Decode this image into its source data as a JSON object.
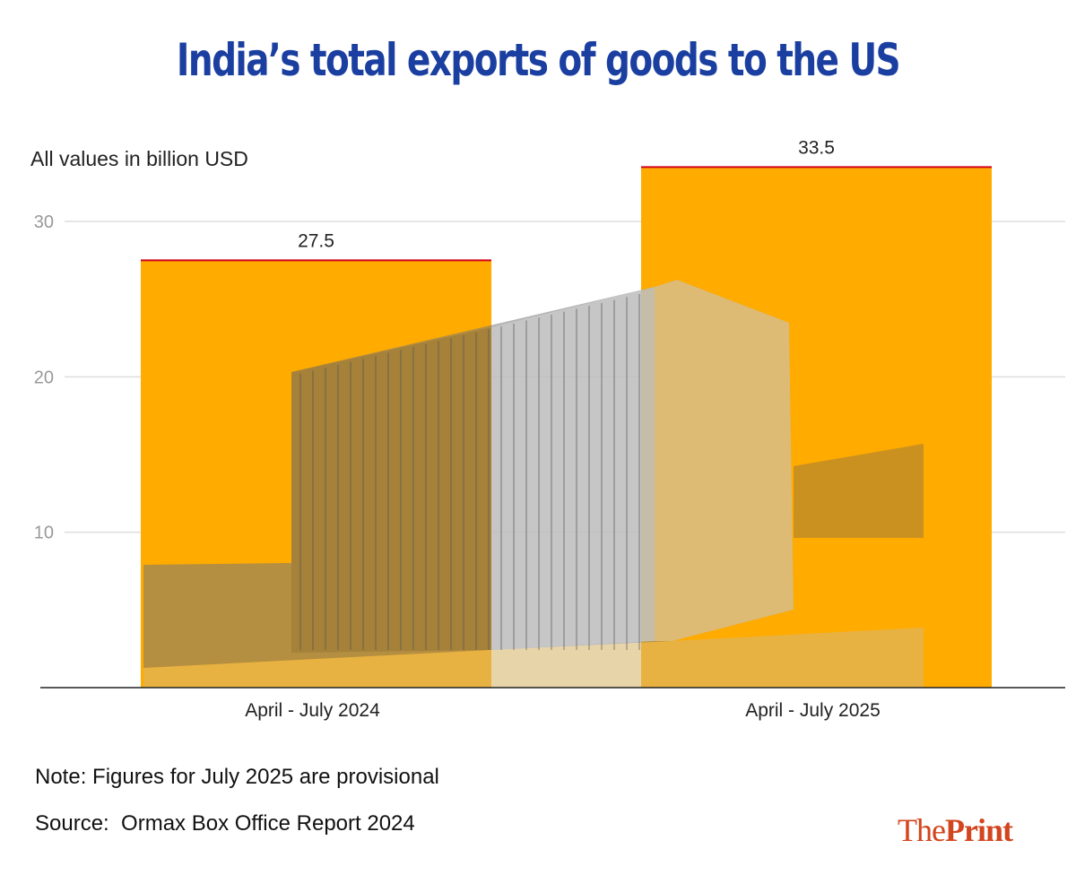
{
  "chart_data": {
    "type": "bar",
    "title": "India’s total exports of goods to the US",
    "subtitle": "All values in billion USD",
    "categories": [
      "April - July 2024",
      "April - July 2025"
    ],
    "values": [
      27.5,
      33.5
    ],
    "data_labels": [
      "27.5",
      "33.5"
    ],
    "ylim": [
      0,
      30
    ],
    "yticks": [
      10,
      20,
      30
    ],
    "grid": true,
    "bar_color": "#ffab00",
    "bar_top_color": "#d0021b",
    "background_image": "shipping-container"
  },
  "footer": {
    "note": "Note: Figures for July 2025 are provisional",
    "source": "Source:  Ormax Box Office Report 2024",
    "logo_the": "The",
    "logo_print": "Print"
  },
  "colors": {
    "title": "#1a3fa0",
    "logo": "#d2451e"
  }
}
